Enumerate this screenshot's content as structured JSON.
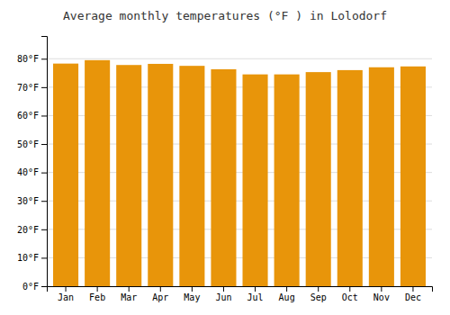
{
  "chart_data": {
    "type": "bar",
    "title": "Average monthly temperatures (°F ) in Lolodorf",
    "categories": [
      "Jan",
      "Feb",
      "Mar",
      "Apr",
      "May",
      "Jun",
      "Jul",
      "Aug",
      "Sep",
      "Oct",
      "Nov",
      "Dec"
    ],
    "values": [
      78.3,
      79.5,
      77.8,
      78.2,
      77.5,
      76.3,
      74.5,
      74.5,
      75.3,
      76.0,
      77.0,
      77.3
    ],
    "color": "#E8950A",
    "ylim": [
      0,
      88
    ],
    "yticks": [
      {
        "value": 0,
        "label": "0°F"
      },
      {
        "value": 10,
        "label": "10°F"
      },
      {
        "value": 20,
        "label": "20°F"
      },
      {
        "value": 30,
        "label": "30°F"
      },
      {
        "value": 40,
        "label": "40°F"
      },
      {
        "value": 50,
        "label": "50°F"
      },
      {
        "value": 60,
        "label": "60°F"
      },
      {
        "value": 70,
        "label": "70°F"
      },
      {
        "value": 80,
        "label": "80°F"
      }
    ],
    "grid": true
  }
}
